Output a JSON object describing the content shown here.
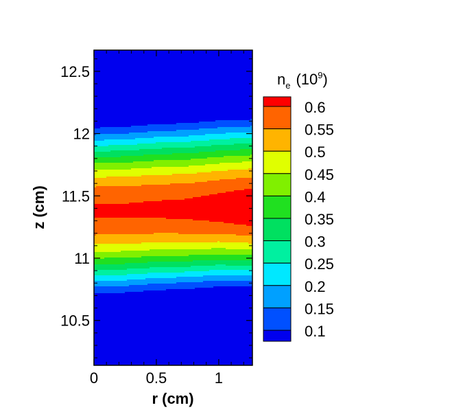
{
  "chart_data": {
    "type": "heatmap",
    "title": "",
    "xlabel": "r (cm)",
    "ylabel": "z (cm)",
    "xlim": [
      0,
      1.27
    ],
    "ylim": [
      10.14,
      12.67
    ],
    "x_ticks": [
      "0",
      "0.5",
      "1"
    ],
    "x_tick_values": [
      0,
      0.5,
      1
    ],
    "y_ticks": [
      "10.5",
      "11",
      "11.5",
      "12",
      "12.5"
    ],
    "y_tick_values": [
      10.5,
      11,
      11.5,
      12,
      12.5
    ],
    "grid": false,
    "legend": {
      "placement": "right",
      "title_main": "n",
      "title_sub": "e",
      "title_paren_open": "(10",
      "title_sup": "9",
      "title_paren_close": ")",
      "levels": [
        "0.6",
        "0.55",
        "0.5",
        "0.45",
        "0.4",
        "0.35",
        "0.3",
        "0.25",
        "0.2",
        "0.15",
        "0.1"
      ]
    },
    "colors": [
      "#0000ee",
      "#0050ff",
      "#00a0ff",
      "#00e8ff",
      "#00f0a0",
      "#00e060",
      "#20e020",
      "#80f000",
      "#e0ff00",
      "#ffb400",
      "#ff6400",
      "#ff0000"
    ],
    "field_profile": {
      "r_samples": [
        0,
        0.25,
        0.5,
        0.75,
        1.0,
        1.27
      ],
      "peak_z": [
        11.38,
        11.38,
        11.39,
        11.39,
        11.4,
        11.4
      ],
      "peak_value": [
        0.605,
        0.605,
        0.607,
        0.61,
        0.62,
        0.635
      ],
      "half_width_upper": [
        0.7,
        0.71,
        0.72,
        0.73,
        0.74,
        0.75
      ],
      "half_width_lower": [
        0.7,
        0.69,
        0.68,
        0.67,
        0.66,
        0.66
      ]
    }
  }
}
